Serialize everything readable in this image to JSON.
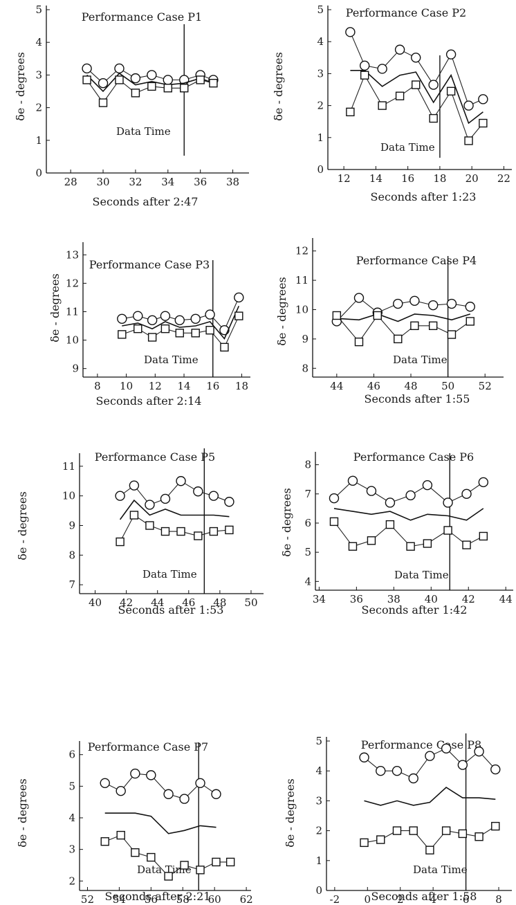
{
  "chart_data": [
    {
      "type": "line",
      "title": "Performance Case P1",
      "xlabel": "Seconds after 2:47",
      "ylabel": "δe - degrees",
      "xlim": [
        26.5,
        39
      ],
      "ylim": [
        0,
        5
      ],
      "xticks": [
        28,
        30,
        32,
        34,
        36,
        38
      ],
      "yticks": [
        0,
        1,
        2,
        3,
        4,
        5
      ],
      "annotation": "Data Time",
      "data_time_x": 35,
      "series": [
        {
          "marker": "circle",
          "x": [
            29,
            30,
            31,
            32,
            33,
            34,
            35,
            36,
            36.8
          ],
          "y": [
            3.2,
            2.75,
            3.2,
            2.9,
            3.0,
            2.85,
            2.85,
            3.0,
            2.85
          ]
        },
        {
          "marker": "none",
          "x": [
            29,
            30,
            31,
            32,
            33,
            34,
            35,
            36,
            36.8
          ],
          "y": [
            3.0,
            2.5,
            3.05,
            2.7,
            2.8,
            2.7,
            2.75,
            2.9,
            2.75
          ]
        },
        {
          "marker": "square",
          "x": [
            29,
            30,
            31,
            32,
            33,
            34,
            35,
            36,
            36.8
          ],
          "y": [
            2.85,
            2.15,
            2.85,
            2.45,
            2.65,
            2.6,
            2.6,
            2.85,
            2.75
          ]
        }
      ]
    },
    {
      "type": "line",
      "title": "Performance Case P2",
      "xlabel": "Seconds after 1:23",
      "ylabel": "δe - degrees",
      "xlim": [
        11,
        22.5
      ],
      "ylim": [
        0,
        5
      ],
      "xticks": [
        12,
        14,
        16,
        18,
        20,
        22
      ],
      "yticks": [
        0,
        1,
        2,
        3,
        4,
        5
      ],
      "annotation": "Data Time",
      "data_time_x": 18,
      "series": [
        {
          "marker": "circle",
          "x": [
            12.4,
            13.3,
            14.4,
            15.5,
            16.5,
            17.6,
            18.7,
            19.8,
            20.7
          ],
          "y": [
            4.3,
            3.25,
            3.15,
            3.75,
            3.5,
            2.65,
            3.6,
            2.0,
            2.2
          ]
        },
        {
          "marker": "none",
          "x": [
            12.4,
            13.3,
            14.4,
            15.5,
            16.5,
            17.6,
            18.7,
            19.8,
            20.7
          ],
          "y": [
            3.1,
            3.1,
            2.6,
            2.95,
            3.05,
            2.1,
            2.95,
            1.45,
            1.8
          ]
        },
        {
          "marker": "square",
          "x": [
            12.4,
            13.3,
            14.4,
            15.5,
            16.5,
            17.6,
            18.7,
            19.8,
            20.7
          ],
          "y": [
            1.8,
            2.95,
            2.0,
            2.3,
            2.65,
            1.6,
            2.45,
            0.9,
            1.45
          ]
        }
      ]
    },
    {
      "type": "line",
      "title": "Performance Case P3",
      "xlabel": "Seconds after 2:14",
      "ylabel": "δe - degrees",
      "xlim": [
        7,
        18.6
      ],
      "ylim": [
        8.7,
        13.3
      ],
      "xticks": [
        8,
        10,
        12,
        14,
        16,
        18
      ],
      "yticks": [
        9,
        10,
        11,
        12,
        13
      ],
      "annotation": "Data Time",
      "data_time_x": 16,
      "series": [
        {
          "marker": "circle",
          "x": [
            9.7,
            10.8,
            11.8,
            12.7,
            13.7,
            14.8,
            15.8,
            16.8,
            17.8
          ],
          "y": [
            10.75,
            10.85,
            10.7,
            10.85,
            10.7,
            10.75,
            10.9,
            10.35,
            11.5
          ]
        },
        {
          "marker": "none",
          "x": [
            9.7,
            10.8,
            11.8,
            12.7,
            13.7,
            14.8,
            15.8,
            16.8,
            17.8
          ],
          "y": [
            10.5,
            10.6,
            10.4,
            10.65,
            10.45,
            10.5,
            10.65,
            10.05,
            11.2
          ]
        },
        {
          "marker": "square",
          "x": [
            9.7,
            10.8,
            11.8,
            12.7,
            13.7,
            14.8,
            15.8,
            16.8,
            17.8
          ],
          "y": [
            10.2,
            10.4,
            10.1,
            10.4,
            10.25,
            10.25,
            10.35,
            9.75,
            10.85
          ]
        }
      ]
    },
    {
      "type": "line",
      "title": "Performance Case P4",
      "xlabel": "Seconds after 1:55",
      "ylabel": "δe - degrees",
      "xlim": [
        42.7,
        53
      ],
      "ylim": [
        7.7,
        12.3
      ],
      "xticks": [
        44,
        46,
        48,
        50,
        52
      ],
      "yticks": [
        8,
        9,
        10,
        11,
        12
      ],
      "annotation": "Data Time",
      "data_time_x": 50,
      "series": [
        {
          "marker": "circle",
          "x": [
            44,
            45.2,
            46.2,
            47.3,
            48.2,
            49.2,
            50.2,
            51.2
          ],
          "y": [
            9.6,
            10.4,
            9.9,
            10.2,
            10.3,
            10.15,
            10.2,
            10.1
          ]
        },
        {
          "marker": "none",
          "x": [
            44,
            45.2,
            46.2,
            47.3,
            48.2,
            49.2,
            50.2,
            51.2
          ],
          "y": [
            9.7,
            9.65,
            9.85,
            9.6,
            9.85,
            9.8,
            9.65,
            9.85
          ]
        },
        {
          "marker": "square",
          "x": [
            44,
            45.2,
            46.2,
            47.3,
            48.2,
            49.2,
            50.2,
            51.2
          ],
          "y": [
            9.8,
            8.9,
            9.8,
            9.0,
            9.45,
            9.45,
            9.15,
            9.6
          ]
        }
      ]
    },
    {
      "type": "line",
      "title": "Performance Case P5",
      "xlabel": "Seconds after 1:53",
      "ylabel": "δe - degrees",
      "xlim": [
        39,
        50.8
      ],
      "ylim": [
        6.7,
        11.3
      ],
      "xticks": [
        40,
        42,
        44,
        46,
        48,
        50
      ],
      "yticks": [
        7,
        8,
        9,
        10,
        11
      ],
      "annotation": "Data Time",
      "data_time_x": 47,
      "series": [
        {
          "marker": "circle",
          "x": [
            41.6,
            42.5,
            43.5,
            44.5,
            45.5,
            46.6,
            47.6,
            48.6
          ],
          "y": [
            10.0,
            10.35,
            9.7,
            9.9,
            10.5,
            10.15,
            10.0,
            9.8
          ]
        },
        {
          "marker": "none",
          "x": [
            41.6,
            42.5,
            43.5,
            44.5,
            45.5,
            46.6,
            47.6,
            48.6
          ],
          "y": [
            9.2,
            9.85,
            9.35,
            9.55,
            9.35,
            9.35,
            9.35,
            9.3
          ]
        },
        {
          "marker": "square",
          "x": [
            41.6,
            42.5,
            43.5,
            44.5,
            45.5,
            46.6,
            47.6,
            48.6
          ],
          "y": [
            8.45,
            9.35,
            9.0,
            8.8,
            8.8,
            8.65,
            8.8,
            8.85
          ]
        }
      ]
    },
    {
      "type": "line",
      "title": "Performance Case P6",
      "xlabel": "Seconds after 1:42",
      "ylabel": "δe - degrees",
      "xlim": [
        33.8,
        44.4
      ],
      "ylim": [
        3.7,
        8.3
      ],
      "xticks": [
        34,
        36,
        38,
        40,
        42,
        44
      ],
      "yticks": [
        4,
        5,
        6,
        7,
        8
      ],
      "annotation": "Data Time",
      "data_time_x": 41,
      "series": [
        {
          "marker": "circle",
          "x": [
            34.8,
            35.8,
            36.8,
            37.8,
            38.9,
            39.8,
            40.9,
            41.9,
            42.8
          ],
          "y": [
            6.85,
            7.45,
            7.1,
            6.7,
            6.95,
            7.3,
            6.7,
            7.0,
            7.4
          ]
        },
        {
          "marker": "none",
          "x": [
            34.8,
            35.8,
            36.8,
            37.8,
            38.9,
            39.8,
            40.9,
            41.9,
            42.8
          ],
          "y": [
            6.5,
            6.4,
            6.3,
            6.4,
            6.1,
            6.3,
            6.25,
            6.1,
            6.5
          ]
        },
        {
          "marker": "square",
          "x": [
            34.8,
            35.8,
            36.8,
            37.8,
            38.9,
            39.8,
            40.9,
            41.9,
            42.8
          ],
          "y": [
            6.05,
            5.2,
            5.4,
            5.95,
            5.2,
            5.3,
            5.75,
            5.25,
            5.55
          ]
        }
      ]
    },
    {
      "type": "line",
      "title": "Performance Case P7",
      "xlabel": "Seconds after 2:21",
      "ylabel": "δe - degrees",
      "xlim": [
        51.5,
        62.3
      ],
      "ylim": [
        1.7,
        6.3
      ],
      "xticks": [
        52,
        54,
        56,
        58,
        60,
        62
      ],
      "yticks": [
        2,
        3,
        4,
        5,
        6
      ],
      "annotation": "Data Time",
      "data_time_x": 59,
      "series": [
        {
          "marker": "circle",
          "x": [
            53.1,
            54.1,
            55,
            56,
            57.1,
            58.1,
            59.1,
            60.1
          ],
          "y": [
            5.1,
            4.85,
            5.4,
            5.35,
            4.75,
            4.6,
            5.1,
            4.75
          ]
        },
        {
          "marker": "none",
          "x": [
            53.1,
            54.1,
            55,
            56,
            57.1,
            58.1,
            59.1,
            60.1
          ],
          "y": [
            4.15,
            4.15,
            4.15,
            4.05,
            3.5,
            3.6,
            3.75,
            3.7
          ]
        },
        {
          "marker": "square",
          "x": [
            53.1,
            54.1,
            55,
            56,
            57.1,
            58.1,
            59.1,
            60.1,
            61
          ],
          "y": [
            3.25,
            3.45,
            2.9,
            2.75,
            2.15,
            2.5,
            2.35,
            2.6,
            2.6
          ]
        }
      ]
    },
    {
      "type": "line",
      "title": "Performance Case P8",
      "xlabel": "Seconds after 1:58",
      "ylabel": "δe - degrees",
      "xlim": [
        -2.5,
        8.8
      ],
      "ylim": [
        0,
        5
      ],
      "xticks": [
        -2,
        0,
        2,
        4,
        6,
        8
      ],
      "yticks": [
        0,
        1,
        2,
        3,
        4,
        5
      ],
      "annotation": "Data Time",
      "data_time_x": 6,
      "series": [
        {
          "marker": "circle",
          "x": [
            -0.2,
            0.8,
            1.8,
            2.8,
            3.8,
            4.8,
            5.8,
            6.8,
            7.8
          ],
          "y": [
            4.45,
            4.0,
            4.0,
            3.75,
            4.5,
            4.75,
            4.2,
            4.65,
            4.05
          ]
        },
        {
          "marker": "none",
          "x": [
            -0.2,
            0.8,
            1.8,
            2.8,
            3.8,
            4.8,
            5.8,
            6.8,
            7.8
          ],
          "y": [
            3.0,
            2.85,
            3.0,
            2.85,
            2.95,
            3.45,
            3.1,
            3.1,
            3.05
          ]
        },
        {
          "marker": "square",
          "x": [
            -0.2,
            0.8,
            1.8,
            2.8,
            3.8,
            4.8,
            5.8,
            6.8,
            7.8
          ],
          "y": [
            1.6,
            1.7,
            2.0,
            2.0,
            1.35,
            2.0,
            1.9,
            1.8,
            2.15
          ]
        }
      ]
    }
  ]
}
